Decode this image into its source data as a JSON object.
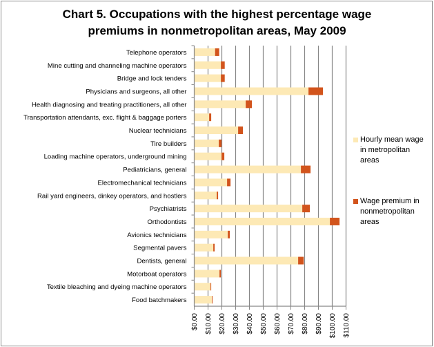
{
  "chart_data": {
    "type": "bar",
    "orientation": "horizontal",
    "stacked": true,
    "title": "Chart 5. Occupations with the highest percentage wage premiums in nonmetropolitan areas, May 2009",
    "title_lines": [
      "Chart 5. Occupations with the highest percentage wage",
      "premiums in nonmetropolitan areas, May 2009"
    ],
    "xlabel": "",
    "ylabel": "",
    "xlim": [
      0,
      110
    ],
    "x_ticks": [
      0,
      10,
      20,
      30,
      40,
      50,
      60,
      70,
      80,
      90,
      100,
      110
    ],
    "x_tick_labels": [
      "$0.00",
      "$10.00",
      "$20.00",
      "$30.00",
      "$40.00",
      "$50.00",
      "$60.00",
      "$70.00",
      "$80.00",
      "$90.00",
      "$100.00",
      "$110.00"
    ],
    "grid": "vertical",
    "legend_position": "right",
    "categories": [
      "Telephone operators",
      "Mine cutting and channeling machine operators",
      "Bridge and lock tenders",
      "Physicians and surgeons, all other",
      "Health diagnosing and treating practitioners, all other",
      "Transportation attendants, exc. flight & baggage porters",
      "Nuclear technicians",
      "Tire builders",
      "Loading machine operators, underground mining",
      "Pediatricians, general",
      "Electromechanical technicians",
      "Rail yard engineers, dinkey operators, and hostlers",
      "Psychiatrists",
      "Orthodontists",
      "Avionics technicians",
      "Segmental pavers",
      "Dentists, general",
      "Motorboat operators",
      "Textile bleaching and dyeing machine operators",
      "Food batchmakers"
    ],
    "series": [
      {
        "name": "Hourly mean wage in metropolitan areas",
        "color": "#FDE9B5",
        "values": [
          15.1,
          19.3,
          19.3,
          82.8,
          37.3,
          10.8,
          31.8,
          17.8,
          19.8,
          77.3,
          23.8,
          16.3,
          78.3,
          98.3,
          24.3,
          13.8,
          75.3,
          18.3,
          11.8,
          12.8
        ]
      },
      {
        "name": "Wage premium in nonmetropolitan areas",
        "color": "#D2541C",
        "values": [
          3.0,
          2.8,
          2.8,
          10.5,
          4.5,
          1.5,
          3.5,
          2.0,
          2.0,
          7.0,
          2.5,
          1.0,
          5.5,
          7.0,
          1.5,
          1.0,
          4.0,
          1.0,
          0.5,
          0.5
        ]
      }
    ],
    "legend": [
      {
        "lines": [
          "Hourly mean wage",
          "in metropolitan",
          "areas"
        ],
        "color": "#FDE9B5"
      },
      {
        "lines": [
          "Wage premium in",
          "nonmetropolitan",
          "areas"
        ],
        "color": "#D2541C"
      }
    ]
  }
}
